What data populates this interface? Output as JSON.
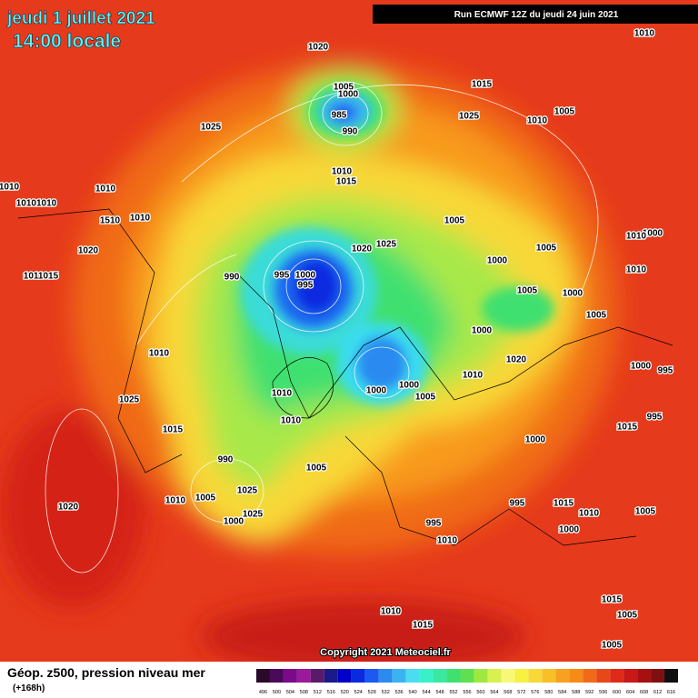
{
  "header": {
    "date": "jeudi 1 juillet 2021",
    "time": "14:00 locale",
    "run": "Run ECMWF 12Z du jeudi 24 juin 2021"
  },
  "copyright": "Copyright 2021 Meteociel.fr",
  "footer": {
    "title": "Géop. z500, pression niveau mer",
    "lead": "(+168h)"
  },
  "scale": {
    "values": [
      496,
      500,
      504,
      508,
      512,
      516,
      520,
      524,
      528,
      532,
      536,
      540,
      544,
      548,
      552,
      556,
      560,
      564,
      568,
      572,
      576,
      580,
      584,
      588,
      592,
      596,
      600,
      604,
      608,
      612,
      616
    ],
    "colors": [
      "#2a0a2a",
      "#4a0a5a",
      "#7a0a8a",
      "#9a1a9a",
      "#5a1a6a",
      "#1a1a8a",
      "#0000c8",
      "#0a2ae0",
      "#1a5af0",
      "#2a8af0",
      "#3ab4f0",
      "#4adcf0",
      "#3af0c8",
      "#3ae8a0",
      "#40e070",
      "#60e050",
      "#a0e840",
      "#d8f050",
      "#f8f878",
      "#f8f040",
      "#f8d838",
      "#f8c028",
      "#f8a020",
      "#f88a18",
      "#f06a18",
      "#e84818",
      "#e02a18",
      "#c81818",
      "#a81010",
      "#801010",
      "#101010"
    ]
  },
  "isobars": [
    "1020",
    "1005",
    "1000",
    "985",
    "990",
    "1015",
    "1025",
    "1010",
    "1005",
    "1010",
    "1025",
    "1010",
    "1015",
    "1010",
    "1010",
    "10101010",
    "1510",
    "1010",
    "1005",
    "1000",
    "1005",
    "1000",
    "1020",
    "1020",
    "1025",
    "1010",
    "1011015",
    "990",
    "995",
    "1000",
    "995",
    "1005",
    "1000",
    "1005",
    "1000",
    "1010",
    "1020",
    "1010",
    "1000",
    "995",
    "1000",
    "1000",
    "1005",
    "1010",
    "1025",
    "1010",
    "1015",
    "1015",
    "995",
    "990",
    "1000",
    "1005",
    "1025",
    "1005",
    "1010",
    "1020",
    "1025",
    "1000",
    "995",
    "1015",
    "1010",
    "1005",
    "1000",
    "995",
    "1010",
    "1010",
    "1015",
    "1015",
    "1005",
    "1005",
    "1010"
  ]
}
